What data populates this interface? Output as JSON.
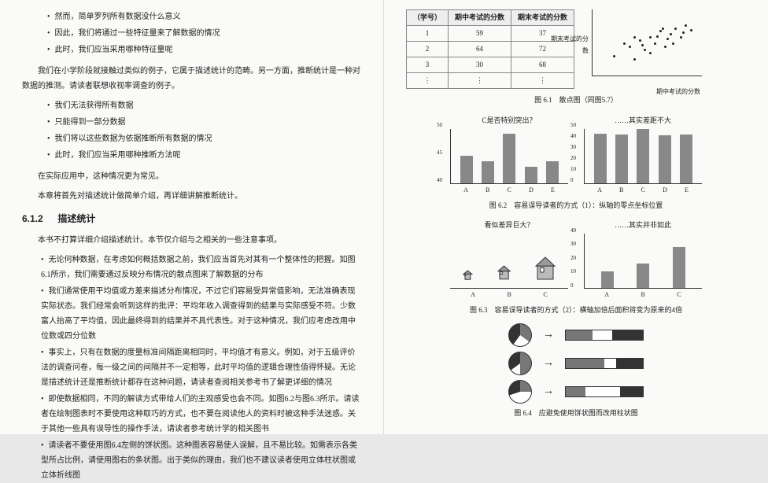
{
  "left_page": {
    "bullets1": [
      "然而，简单罗列所有数据没什么意义",
      "因此，我们将通过一些特征量来了解数据的情况",
      "此时，我们应当采用哪种特征量呢"
    ],
    "para1": "我们在小学阶段就接触过类似的例子，它属于描述统计的范畴。另一方面，推断统计是一种对数据的推测。请读者联想收视率调查的例子。",
    "bullets2": [
      "我们无法获得所有数据",
      "只能得到一部分数据",
      "我们将以这些数据为依据推断所有数据的情况",
      "此时，我们应当采用哪种推断方法呢"
    ],
    "para2": "在实际应用中，这种情况更为常见。",
    "para3": "本章将首先对描述统计做简单介绍，再详细讲解推断统计。",
    "section_num": "6.1.2",
    "section_title": "描述统计",
    "para4": "本书不打算详细介绍描述统计。本节仅介绍与之相关的一些注意事项。",
    "bullets3": [
      "无论何种数据，在考虑如何概括数据之前，我们应当首先对其有一个整体性的把握。如图6.1所示，我们需要通过反映分布情况的散点图来了解数据的分布",
      "我们通常使用平均值或方差来描述分布情况，不过它们容易受异常值影响，无法准确表现实际状态。我们经常会听到这样的批评：平均年收入调查得到的结果与实际感受不符。少数富人抬高了平均值，因此最终得到的结果并不具代表性。对于这种情况，我们应考虑改用中位数或四分位数",
      "事实上，只有在数据的度量标准间隔距离相同时，平均值才有意义。例如，对于五级评价法的调查问卷，每一级之间的间隔并不一定相等，此时平均值的逻辑合理性值得怀疑。无论是描述统计还是推断统计都存在这种问题，请读者查阅相关参考书了解更详细的情况",
      "即使数据相同，不同的解读方式带给人们的主观感受也会不同。如图6.2与图6.3所示。请读者在绘制图表时不要使用这种取巧的方式，也不要在阅读他人的资料时被这种手法迷惑。关于其他一些具有误导性的操作手法，请读者参考统计学的相关图书",
      "请读者不要使用图6.4左侧的饼状图。这种图表容易使人误解，且不易比较。如需表示各类型所占比例，请使用图右的条状图。出于类似的理由，我们也不建议读者使用立体柱状图或立体折线图"
    ]
  },
  "right_page": {
    "table": {
      "headers": [
        "（学号）",
        "期中考试的分数",
        "期末考试的分数"
      ],
      "rows": [
        [
          "1",
          "59",
          "37"
        ],
        [
          "2",
          "64",
          "72"
        ],
        [
          "3",
          "30",
          "68"
        ],
        [
          "⋮",
          "⋮",
          "⋮"
        ]
      ]
    },
    "scatter": {
      "ylabel": "期末考试的分数",
      "xlabel": "期中考试的分数",
      "points": [
        [
          20,
          30
        ],
        [
          35,
          45
        ],
        [
          40,
          25
        ],
        [
          45,
          55
        ],
        [
          50,
          40
        ],
        [
          55,
          60
        ],
        [
          60,
          50
        ],
        [
          65,
          70
        ],
        [
          70,
          45
        ],
        [
          75,
          65
        ],
        [
          80,
          75
        ],
        [
          85,
          60
        ],
        [
          90,
          80
        ],
        [
          95,
          72
        ],
        [
          55,
          35
        ],
        [
          62,
          62
        ],
        [
          48,
          48
        ],
        [
          72,
          58
        ],
        [
          88,
          68
        ],
        [
          40,
          60
        ],
        [
          30,
          50
        ],
        [
          68,
          75
        ],
        [
          78,
          50
        ]
      ]
    },
    "caption1": "图 6.1　散点图（同图5.7）",
    "chart62": {
      "left": {
        "title": "C是否特别突出？",
        "labels": [
          "A",
          "B",
          "C",
          "D",
          "E"
        ],
        "values": [
          45,
          44,
          49,
          43,
          44
        ],
        "ylim": [
          40,
          50
        ],
        "yticks": [
          40,
          45,
          50
        ],
        "colors": [
          "#888",
          "#888",
          "#888",
          "#888",
          "#888"
        ]
      },
      "right": {
        "title": "……其实差距不大",
        "labels": [
          "A",
          "B",
          "C",
          "D",
          "E"
        ],
        "values": [
          45,
          44,
          49,
          43,
          44
        ],
        "ylim": [
          0,
          50
        ],
        "yticks": [
          0,
          10,
          20,
          30,
          40,
          50
        ],
        "colors": [
          "#888",
          "#888",
          "#888",
          "#888",
          "#888"
        ]
      },
      "caption": "图 6.2　容易误导读者的方式（1）：纵轴的零点坐标位置"
    },
    "chart63": {
      "left": {
        "title": "看似差异巨大？",
        "labels": [
          "A",
          "B",
          "C"
        ],
        "values": [
          12,
          18,
          30
        ]
      },
      "right": {
        "title": "……其实并非如此",
        "labels": [
          "A",
          "B",
          "C"
        ],
        "values": [
          12,
          18,
          30
        ],
        "ylim": [
          0,
          40
        ],
        "yticks": [
          0,
          10,
          20,
          30,
          40
        ],
        "colors": [
          "#888",
          "#888",
          "#888"
        ]
      },
      "caption": "图 6.3　容易误导读者的方式（2）：横轴加倍后面积将变为原来的4倍"
    },
    "chart64": {
      "pies": [
        {
          "slices": [
            {
              "c": "#777",
              "p": 35
            },
            {
              "c": "#fff",
              "p": 25
            },
            {
              "c": "#333",
              "p": 40
            }
          ]
        },
        {
          "slices": [
            {
              "c": "#777",
              "p": 50
            },
            {
              "c": "#fff",
              "p": 15
            },
            {
              "c": "#333",
              "p": 35
            }
          ]
        },
        {
          "slices": [
            {
              "c": "#777",
              "p": 25
            },
            {
              "c": "#fff",
              "p": 45
            },
            {
              "c": "#333",
              "p": 30
            }
          ]
        }
      ],
      "caption": "图 6.4　应避免使用饼状图而改用柱状图"
    }
  }
}
